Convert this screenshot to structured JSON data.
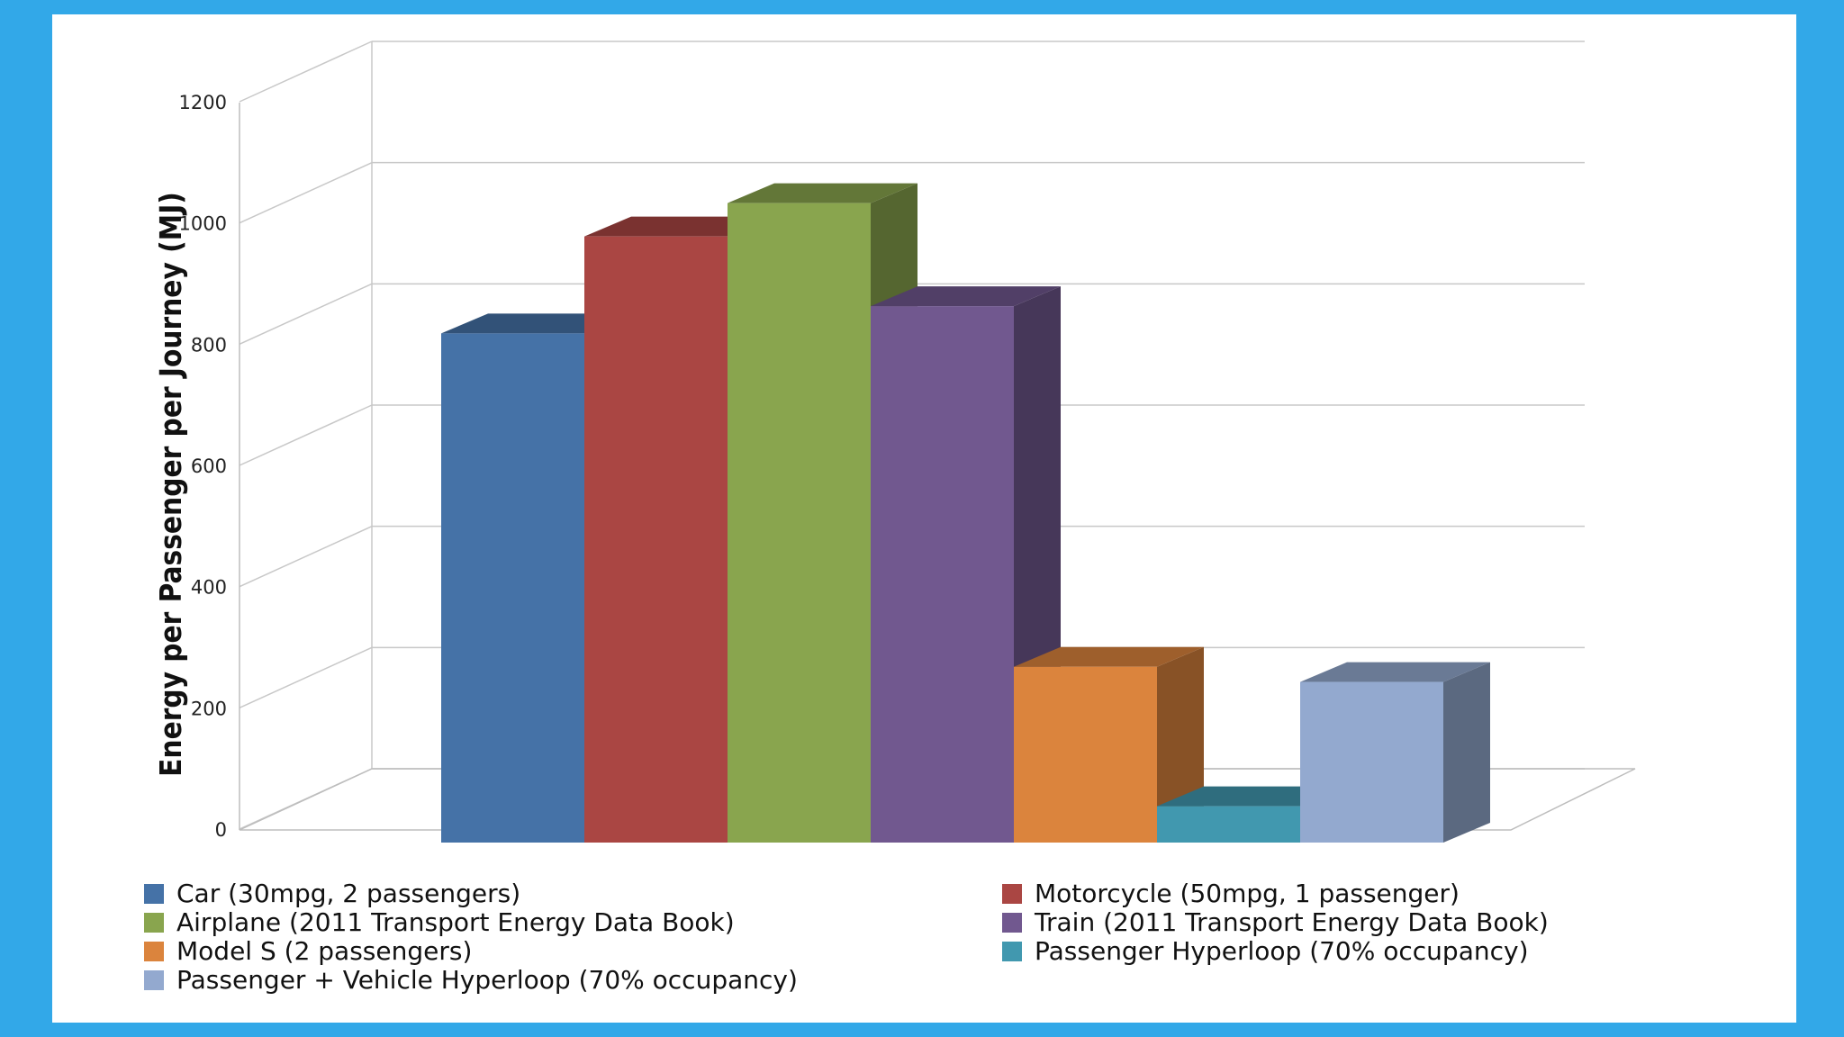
{
  "chart_data": {
    "type": "bar",
    "ylabel": "Energy per Passenger per Journey (MJ)",
    "xlabel": "",
    "ylim": [
      0,
      1200
    ],
    "yticks": [
      0,
      200,
      400,
      600,
      800,
      1000,
      1200
    ],
    "grid": true,
    "legend_position": "bottom",
    "series": [
      {
        "name": "Car  (30mpg, 2 passengers)",
        "value": 840,
        "color": "#4572a7"
      },
      {
        "name": "Motorcycle  (50mpg, 1 passenger)",
        "value": 1000,
        "color": "#aa4643"
      },
      {
        "name": "Airplane  (2011 Transport Energy Data Book)",
        "value": 1055,
        "color": "#89a54e"
      },
      {
        "name": "Train  (2011 Transport Energy Data Book)",
        "value": 885,
        "color": "#71588f"
      },
      {
        "name": "Model S  (2 passengers)",
        "value": 290,
        "color": "#db843d"
      },
      {
        "name": "Passenger Hyperloop  (70% occupancy)",
        "value": 60,
        "color": "#4198af"
      },
      {
        "name": "Passenger + Vehicle Hyperloop  (70% occupancy)",
        "value": 265,
        "color": "#93a9cf"
      }
    ]
  }
}
